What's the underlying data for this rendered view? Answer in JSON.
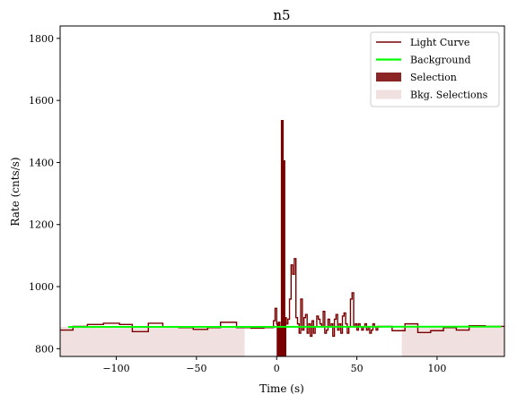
{
  "chart_data": {
    "type": "line",
    "title": "n5",
    "xlabel": "Time (s)",
    "ylabel": "Rate (cnts/s)",
    "xlim": [
      -135,
      142
    ],
    "ylim": [
      775,
      1840
    ],
    "xticks": [
      -100,
      -50,
      0,
      50,
      100
    ],
    "xtick_labels": [
      "−100",
      "−50",
      "0",
      "50",
      "100"
    ],
    "yticks": [
      800,
      1000,
      1200,
      1400,
      1600,
      1800
    ],
    "ytick_labels": [
      "800",
      "1000",
      "1200",
      "1400",
      "1600",
      "1800"
    ],
    "grid": false,
    "legend": {
      "placement": "top-right",
      "entries": [
        "Light Curve",
        "Background",
        "Selection",
        "Bkg. Selections"
      ]
    },
    "colors": {
      "light_curve": "#7a0000",
      "background": "#00ff00",
      "selection": "#8b2525",
      "bkg_selection": "#f0e0e0"
    },
    "light_curve": {
      "x": [
        -135,
        -127,
        -118,
        -108,
        -98,
        -90,
        -80,
        -71,
        -61,
        -52,
        -43,
        -35,
        -25,
        -16,
        -8,
        -2,
        -1,
        0,
        1,
        2,
        3,
        4,
        5,
        6,
        7,
        8,
        9,
        10,
        11,
        12,
        13,
        14,
        15,
        16,
        17,
        18,
        19,
        20,
        21,
        22,
        23,
        24,
        25,
        26,
        27,
        28,
        29,
        30,
        31,
        32,
        33,
        34,
        35,
        36,
        37,
        38,
        39,
        40,
        41,
        42,
        43,
        44,
        45,
        46,
        47,
        48,
        49,
        50,
        51,
        52,
        53,
        54,
        55,
        56,
        57,
        58,
        59,
        60,
        61,
        62,
        63,
        64,
        65,
        72,
        80,
        88,
        96,
        104,
        112,
        120,
        130,
        142
      ],
      "y": [
        860,
        872,
        878,
        882,
        878,
        855,
        882,
        870,
        868,
        862,
        868,
        885,
        868,
        866,
        868,
        890,
        930,
        880,
        885,
        870,
        1535,
        1405,
        900,
        880,
        895,
        960,
        1070,
        1040,
        1090,
        900,
        880,
        850,
        960,
        860,
        900,
        910,
        850,
        880,
        840,
        890,
        850,
        870,
        905,
        895,
        880,
        870,
        920,
        850,
        860,
        895,
        870,
        880,
        840,
        895,
        910,
        860,
        880,
        850,
        905,
        915,
        880,
        850,
        870,
        960,
        980,
        870,
        880,
        860,
        880,
        870,
        860,
        870,
        880,
        860,
        870,
        850,
        860,
        880,
        870,
        860,
        872,
        870,
        872,
        858,
        880,
        852,
        858,
        868,
        860,
        874,
        872,
        870
      ]
    },
    "background": {
      "x": [
        -130,
        140
      ],
      "y": [
        870,
        871
      ]
    },
    "selection": {
      "x_range": [
        0,
        6
      ]
    },
    "bkg_selections": [
      [
        -135,
        -20
      ],
      [
        78,
        142
      ]
    ]
  }
}
